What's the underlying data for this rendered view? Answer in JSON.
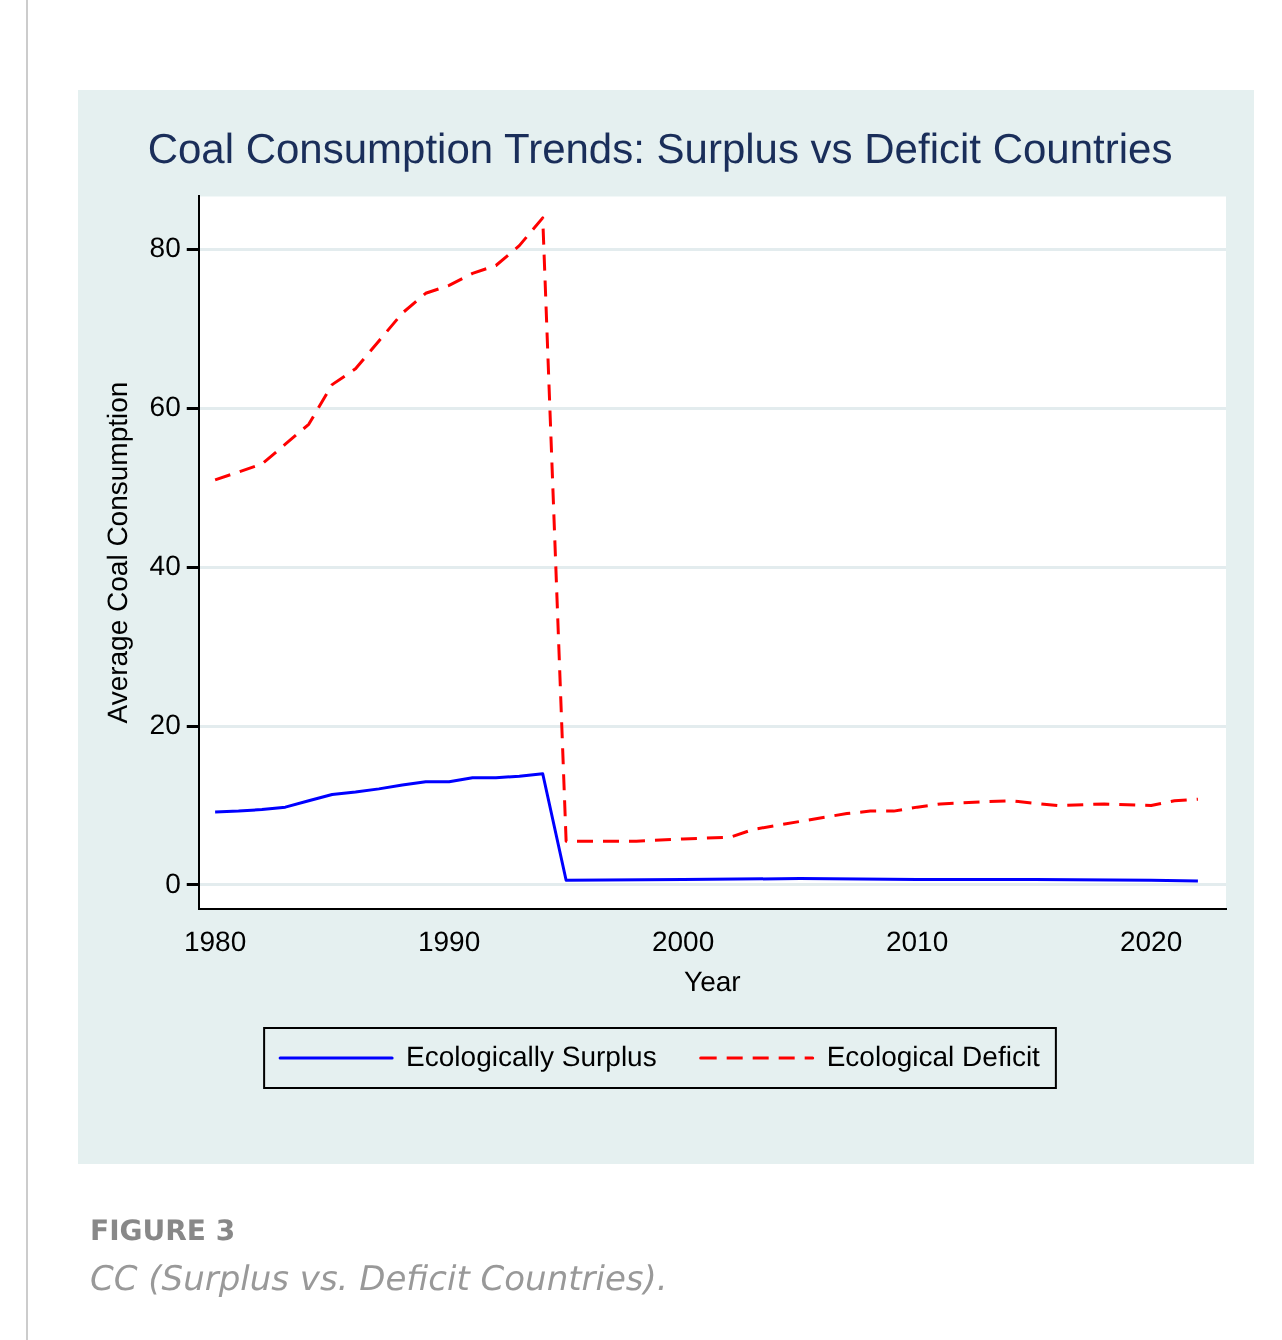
{
  "chart_data": {
    "type": "line",
    "title": "Coal Consumption Trends: Surplus vs Deficit Countries",
    "xlabel": "Year",
    "ylabel": "Average Coal Consumption",
    "annotations": [
      "FIGURE 3",
      "CC (Surplus vs. Deficit Countries)."
    ],
    "xlim": [
      1979.3,
      2023.2
    ],
    "xticks": [
      1980,
      1990,
      2000,
      2010,
      2020
    ],
    "ylim": [
      -3,
      86.7
    ],
    "yticks": [
      0,
      20,
      40,
      60,
      80
    ],
    "grid": "y",
    "legend": "bottom",
    "marker": "none",
    "series": [
      {
        "name": "Ecologically Surplus",
        "color": "#0000ff",
        "line_style": "solid",
        "x": [
          1980,
          1981,
          1982,
          1983,
          1984,
          1985,
          1986,
          1987,
          1988,
          1989,
          1990,
          1991,
          1992,
          1993,
          1994,
          1995,
          2000,
          2005,
          2010,
          2015,
          2020,
          2022
        ],
        "values": [
          9.2,
          9.3,
          9.5,
          9.8,
          10.6,
          11.4,
          11.7,
          12.1,
          12.6,
          13,
          13,
          13.5,
          13.5,
          13.7,
          14,
          0.6,
          0.7,
          0.8,
          0.7,
          0.7,
          0.6,
          0.5
        ]
      },
      {
        "name": "Ecological Deficit",
        "color": "#ff0000",
        "line_style": "dashed",
        "x": [
          1980,
          1981,
          1982,
          1983,
          1984,
          1985,
          1986,
          1987,
          1988,
          1989,
          1990,
          1991,
          1992,
          1993,
          1994,
          1995,
          1998,
          2000,
          2002,
          2003,
          2005,
          2007,
          2008,
          2009,
          2010,
          2011,
          2013,
          2014,
          2016,
          2018,
          2020,
          2021,
          2022
        ],
        "values": [
          51,
          52,
          53,
          55.5,
          58,
          63,
          65,
          68.5,
          72,
          74.5,
          75.5,
          77,
          78,
          80.5,
          84,
          5.5,
          5.5,
          5.8,
          6,
          7,
          8,
          9,
          9.3,
          9.3,
          9.8,
          10.2,
          10.5,
          10.6,
          10,
          10.2,
          10,
          10.6,
          10.8
        ]
      }
    ]
  }
}
